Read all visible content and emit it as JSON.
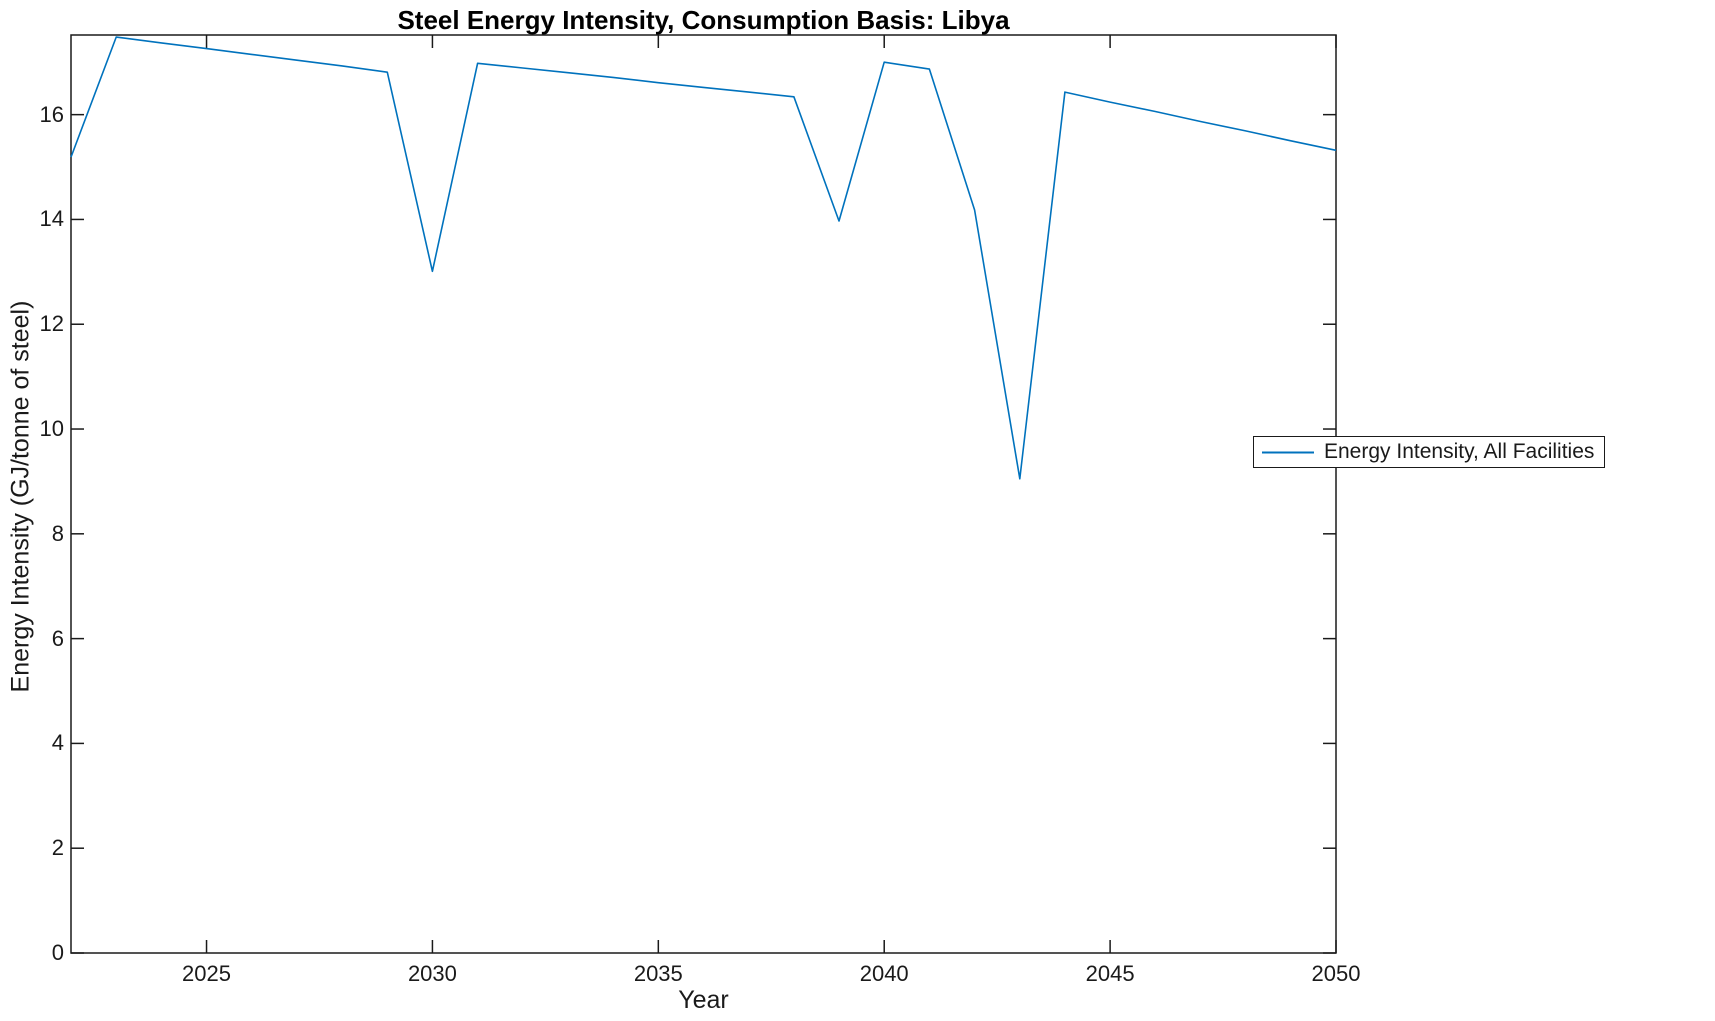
{
  "chart_data": {
    "type": "line",
    "title": "Steel Energy Intensity, Consumption Basis: Libya",
    "xlabel": "Year",
    "ylabel": "Energy Intensity (GJ/tonne of steel)",
    "legend": [
      "Energy Intensity, All Facilities"
    ],
    "legend_position": "outside-right",
    "grid": false,
    "line_color": "#0072BD",
    "axis_color": "#1a1a1a",
    "xlim": [
      2022,
      2050
    ],
    "ylim": [
      0,
      17.52
    ],
    "xticks": [
      2025,
      2030,
      2035,
      2040,
      2045,
      2050
    ],
    "yticks": [
      0,
      2,
      4,
      6,
      8,
      10,
      12,
      14,
      16
    ],
    "x": [
      2022,
      2023,
      2024,
      2025,
      2026,
      2027,
      2028,
      2029,
      2030,
      2031,
      2032,
      2033,
      2034,
      2035,
      2036,
      2037,
      2038,
      2039,
      2040,
      2041,
      2042,
      2043,
      2044,
      2045,
      2046,
      2047,
      2048,
      2049,
      2050
    ],
    "series": [
      {
        "name": "Energy Intensity, All Facilities",
        "values": [
          15.19,
          17.48,
          17.37,
          17.26,
          17.15,
          17.04,
          16.93,
          16.81,
          13.01,
          16.98,
          16.89,
          16.8,
          16.71,
          16.61,
          16.52,
          16.43,
          16.34,
          13.97,
          17.0,
          16.87,
          14.18,
          9.05,
          16.43,
          16.24,
          16.06,
          15.87,
          15.69,
          15.5,
          15.32
        ]
      }
    ]
  }
}
